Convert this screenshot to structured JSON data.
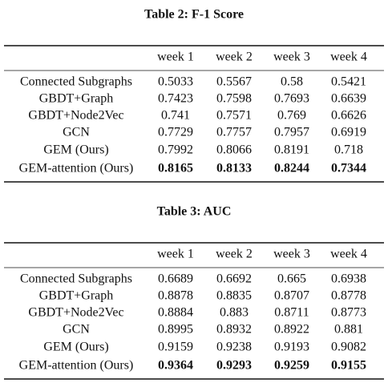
{
  "tables": [
    {
      "title": "Table 2: F-1 Score",
      "header": [
        "week 1",
        "week 2",
        "week 3",
        "week 4"
      ],
      "rows": [
        [
          "Connected Subgraphs",
          "0.5033",
          "0.5567",
          "0.58",
          "0.5421"
        ],
        [
          "GBDT+Graph",
          "0.7423",
          "0.7598",
          "0.7693",
          "0.6639"
        ],
        [
          "GBDT+Node2Vec",
          "0.741",
          "0.7571",
          "0.769",
          "0.6626"
        ],
        [
          "GCN",
          "0.7729",
          "0.7757",
          "0.7957",
          "0.6919"
        ],
        [
          "GEM (Ours)",
          "0.7992",
          "0.8066",
          "0.8191",
          "0.718"
        ],
        [
          "GEM-attention (Ours)",
          "0.8165",
          "0.8133",
          "0.8244",
          "0.7344"
        ]
      ]
    },
    {
      "title": "Table 3: AUC",
      "header": [
        "week 1",
        "week 2",
        "week 3",
        "week 4"
      ],
      "rows": [
        [
          "Connected Subgraphs",
          "0.6689",
          "0.6692",
          "0.665",
          "0.6938"
        ],
        [
          "GBDT+Graph",
          "0.8878",
          "0.8835",
          "0.8707",
          "0.8778"
        ],
        [
          "GBDT+Node2Vec",
          "0.8884",
          "0.883",
          "0.8711",
          "0.8773"
        ],
        [
          "GCN",
          "0.8995",
          "0.8932",
          "0.8922",
          "0.881"
        ],
        [
          "GEM (Ours)",
          "0.9159",
          "0.9238",
          "0.9193",
          "0.9082"
        ],
        [
          "GEM-attention (Ours)",
          "0.9364",
          "0.9293",
          "0.9259",
          "0.9155"
        ]
      ]
    }
  ]
}
